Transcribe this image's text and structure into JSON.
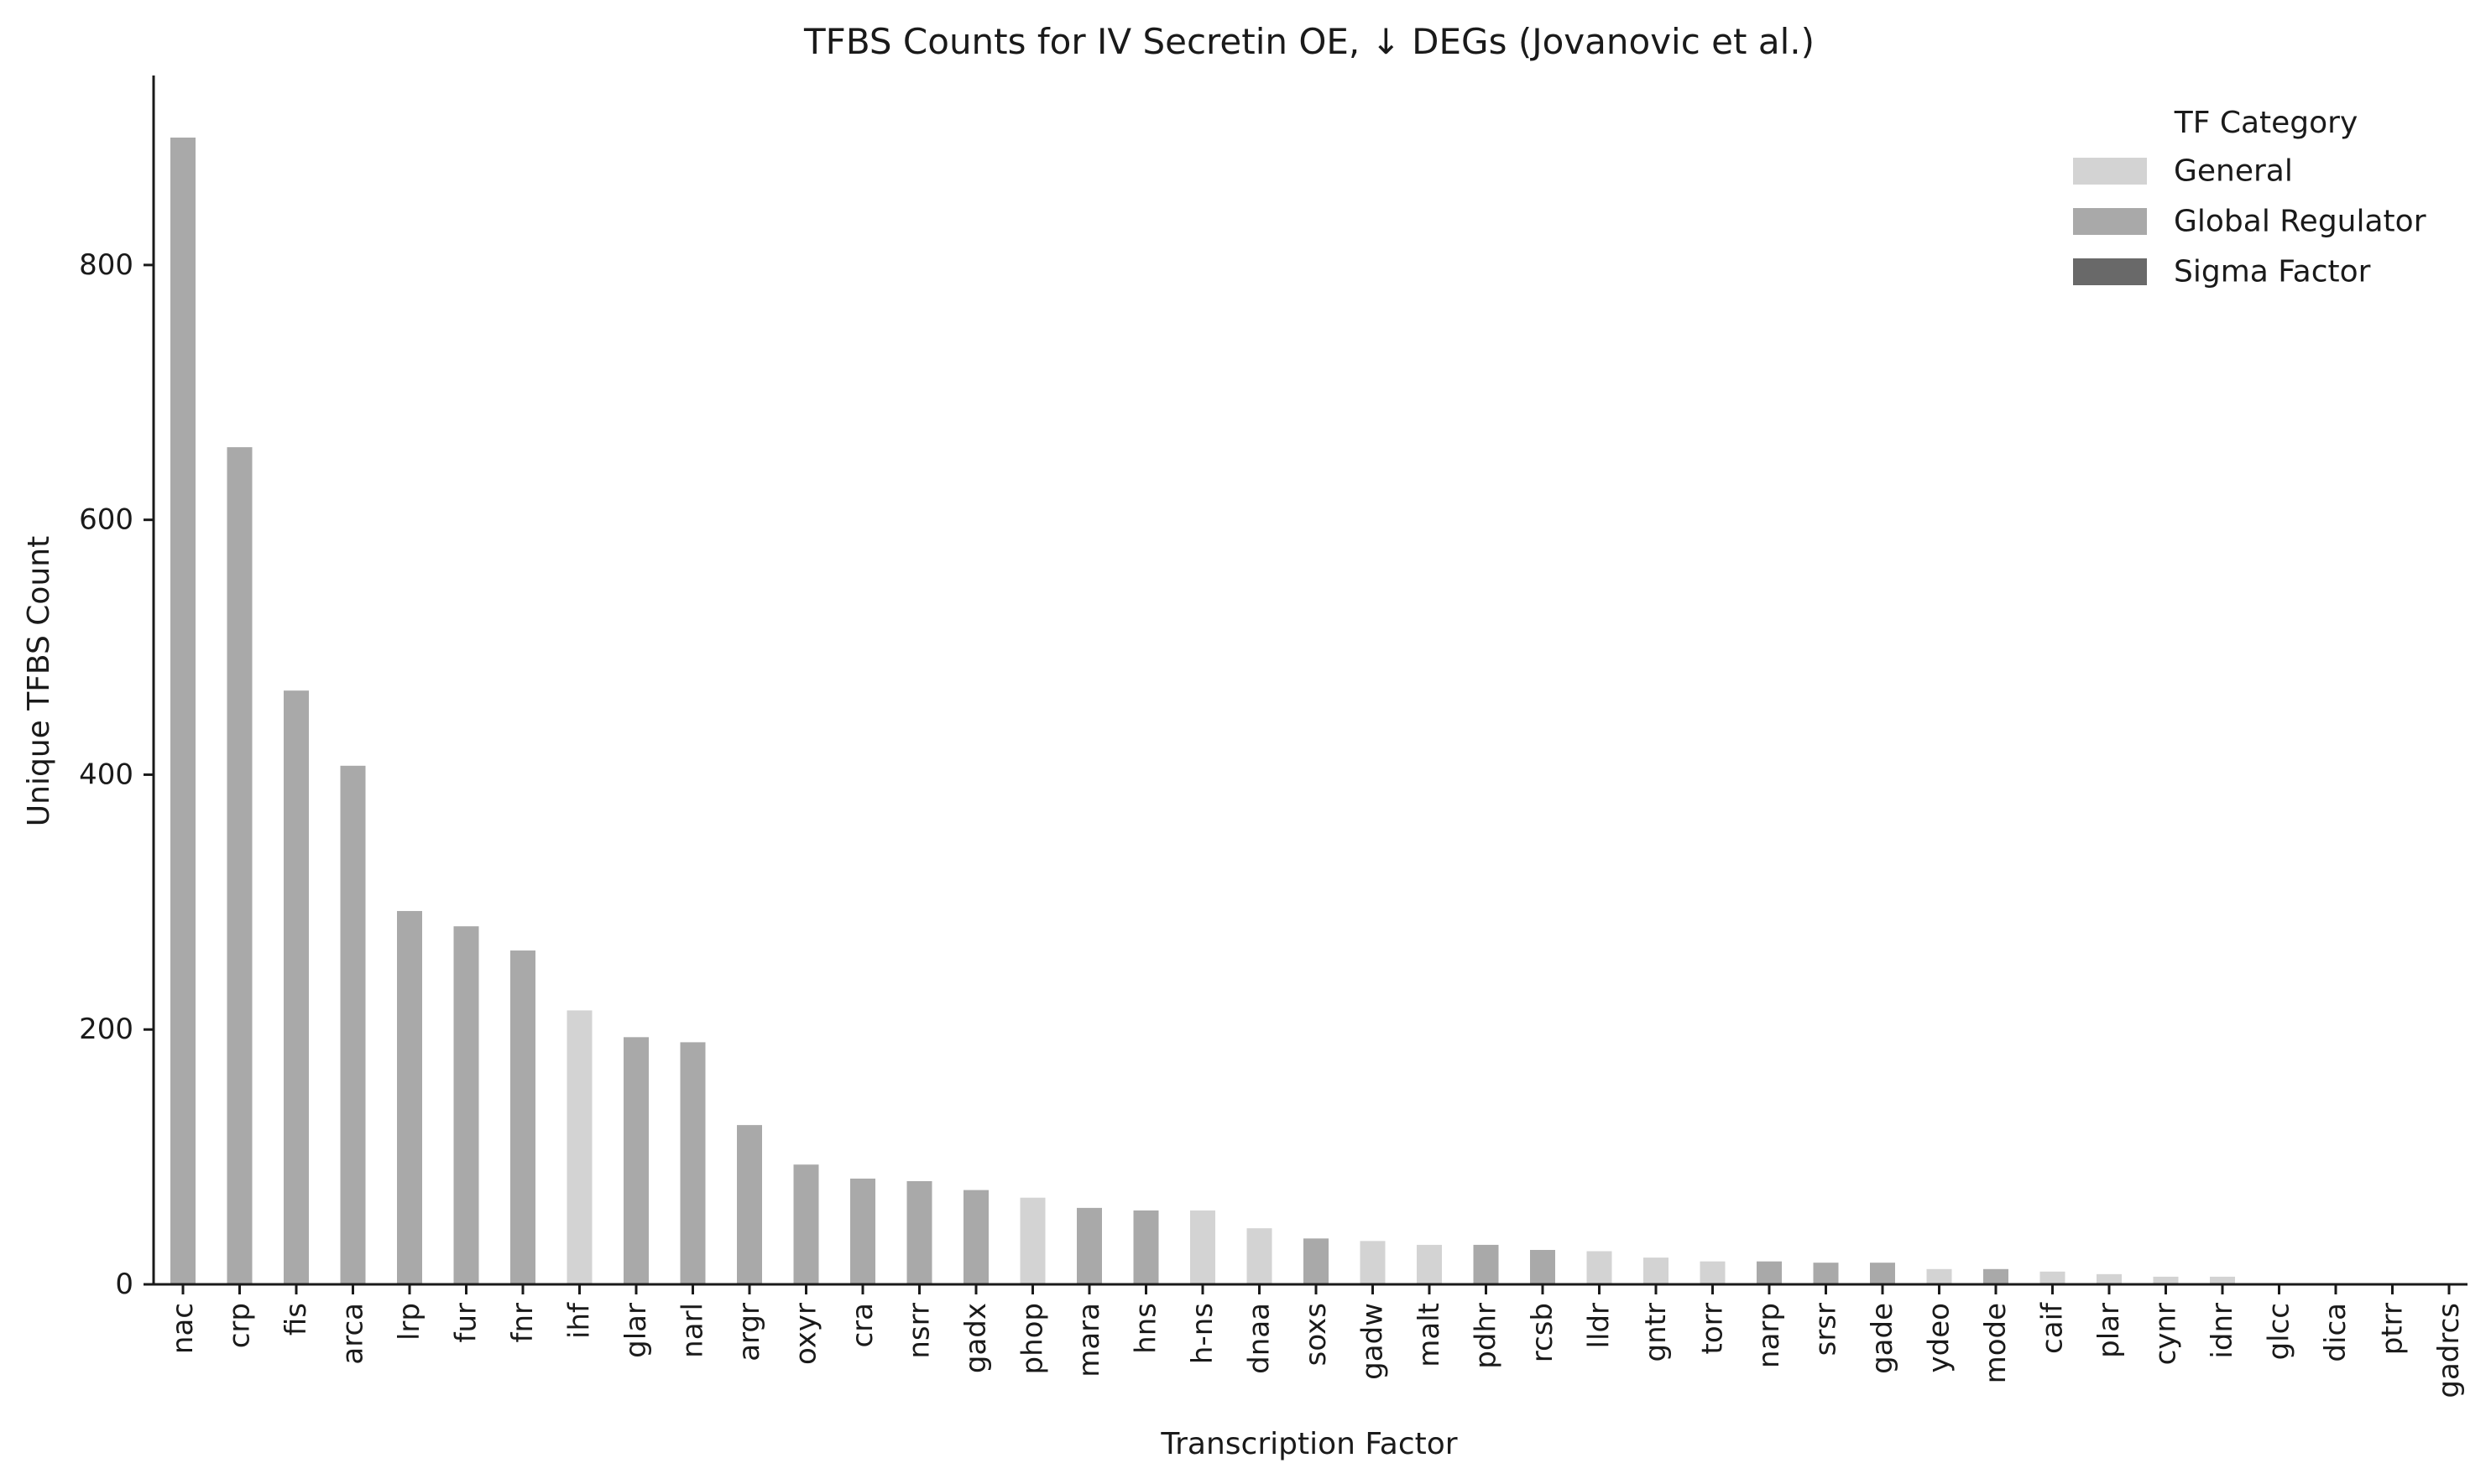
{
  "chart_data": {
    "type": "bar",
    "title": "TFBS Counts for IV Secretin OE, ↓ DEGs (Jovanovic et al.)",
    "xlabel": "Transcription Factor",
    "ylabel": "Unique TFBS Count",
    "ylim": [
      0,
      950
    ],
    "yticks": [
      0,
      200,
      400,
      600,
      800
    ],
    "grid": false,
    "legend": {
      "title": "TF Category",
      "placement": "top-right",
      "entries": [
        {
          "name": "General",
          "color": "#d3d3d3"
        },
        {
          "name": "Global Regulator",
          "color": "#a9a9a9"
        },
        {
          "name": "Sigma Factor",
          "color": "#696969"
        }
      ]
    },
    "categories": [
      "nac",
      "crp",
      "fis",
      "arca",
      "lrp",
      "fur",
      "fnr",
      "ihf",
      "glar",
      "narl",
      "argr",
      "oxyr",
      "cra",
      "nsrr",
      "gadx",
      "phop",
      "mara",
      "hns",
      "h-ns",
      "dnaa",
      "soxs",
      "gadw",
      "malt",
      "pdhr",
      "rcsb",
      "lldr",
      "gntr",
      "torr",
      "narp",
      "srsr",
      "gade",
      "ydeo",
      "mode",
      "caif",
      "plar",
      "cynr",
      "idnr",
      "glcc",
      "dica",
      "ptrr",
      "gadrcs"
    ],
    "values": [
      900,
      657,
      466,
      407,
      293,
      281,
      262,
      215,
      194,
      190,
      125,
      94,
      83,
      81,
      74,
      68,
      60,
      58,
      58,
      44,
      36,
      34,
      31,
      31,
      27,
      26,
      21,
      18,
      18,
      17,
      17,
      12,
      12,
      10,
      8,
      6,
      6,
      1,
      1,
      1,
      0
    ],
    "category_type": [
      "Global Regulator",
      "Global Regulator",
      "Global Regulator",
      "Global Regulator",
      "Global Regulator",
      "Global Regulator",
      "Global Regulator",
      "General",
      "Global Regulator",
      "Global Regulator",
      "Global Regulator",
      "Global Regulator",
      "Global Regulator",
      "Global Regulator",
      "Global Regulator",
      "General",
      "Global Regulator",
      "Global Regulator",
      "General",
      "General",
      "Global Regulator",
      "General",
      "General",
      "Global Regulator",
      "Global Regulator",
      "General",
      "General",
      "General",
      "Global Regulator",
      "Global Regulator",
      "Global Regulator",
      "General",
      "Global Regulator",
      "General",
      "General",
      "General",
      "General",
      "General",
      "General",
      "General",
      "General"
    ]
  }
}
